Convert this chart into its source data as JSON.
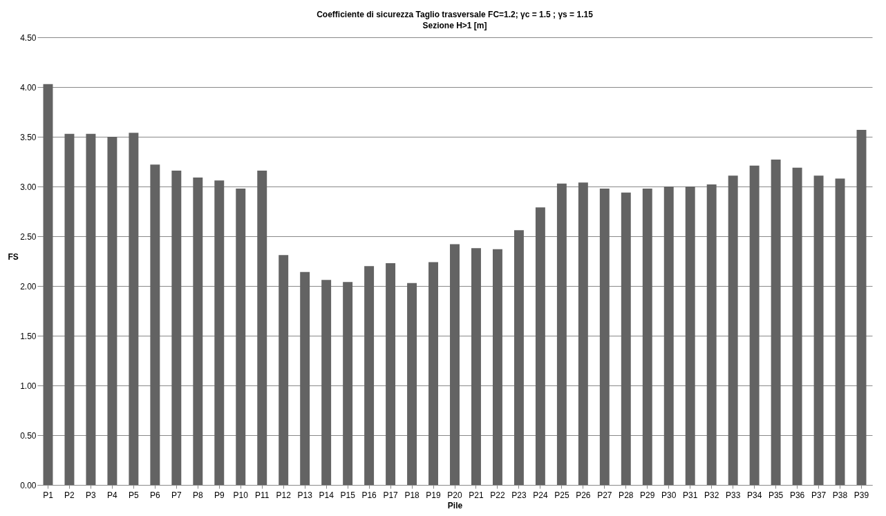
{
  "chart_data": {
    "type": "bar",
    "title": "Coefficiente di sicurezza Taglio trasversale   FC=1.2; γc = 1.5 ; γs = 1.15",
    "subtitle": "Sezione H>1 [m]",
    "xlabel": "Pile",
    "ylabel": "FS",
    "categories": [
      "P1",
      "P2",
      "P3",
      "P4",
      "P5",
      "P6",
      "P7",
      "P8",
      "P9",
      "P10",
      "P11",
      "P12",
      "P13",
      "P14",
      "P15",
      "P16",
      "P17",
      "P18",
      "P19",
      "P20",
      "P21",
      "P22",
      "P23",
      "P24",
      "P25",
      "P26",
      "P27",
      "P28",
      "P29",
      "P30",
      "P31",
      "P32",
      "P33",
      "P34",
      "P35",
      "P36",
      "P37",
      "P38",
      "P39"
    ],
    "values": [
      4.03,
      3.53,
      3.53,
      3.5,
      3.54,
      3.22,
      3.16,
      3.09,
      3.06,
      2.98,
      3.16,
      2.31,
      2.14,
      2.06,
      2.04,
      2.2,
      2.23,
      2.03,
      2.24,
      2.42,
      2.38,
      2.37,
      2.56,
      2.79,
      3.03,
      3.04,
      2.98,
      2.94,
      2.98,
      3.0,
      3.0,
      3.02,
      3.11,
      3.21,
      3.27,
      3.19,
      3.11,
      3.08,
      3.57
    ],
    "color": "#636363",
    "ylim": [
      0,
      4.5
    ],
    "yticks": [
      {
        "value": 0,
        "label": "0.00"
      },
      {
        "value": 0.5,
        "label": "0.50"
      },
      {
        "value": 1,
        "label": "1.00"
      },
      {
        "value": 1.5,
        "label": "1.50"
      },
      {
        "value": 2,
        "label": "2.00"
      },
      {
        "value": 2.5,
        "label": "2.50"
      },
      {
        "value": 3,
        "label": "3.00"
      },
      {
        "value": 3.5,
        "label": "3.50"
      },
      {
        "value": 4,
        "label": "4.00"
      },
      {
        "value": 4.5,
        "label": "4.50"
      }
    ],
    "grid": "y"
  }
}
